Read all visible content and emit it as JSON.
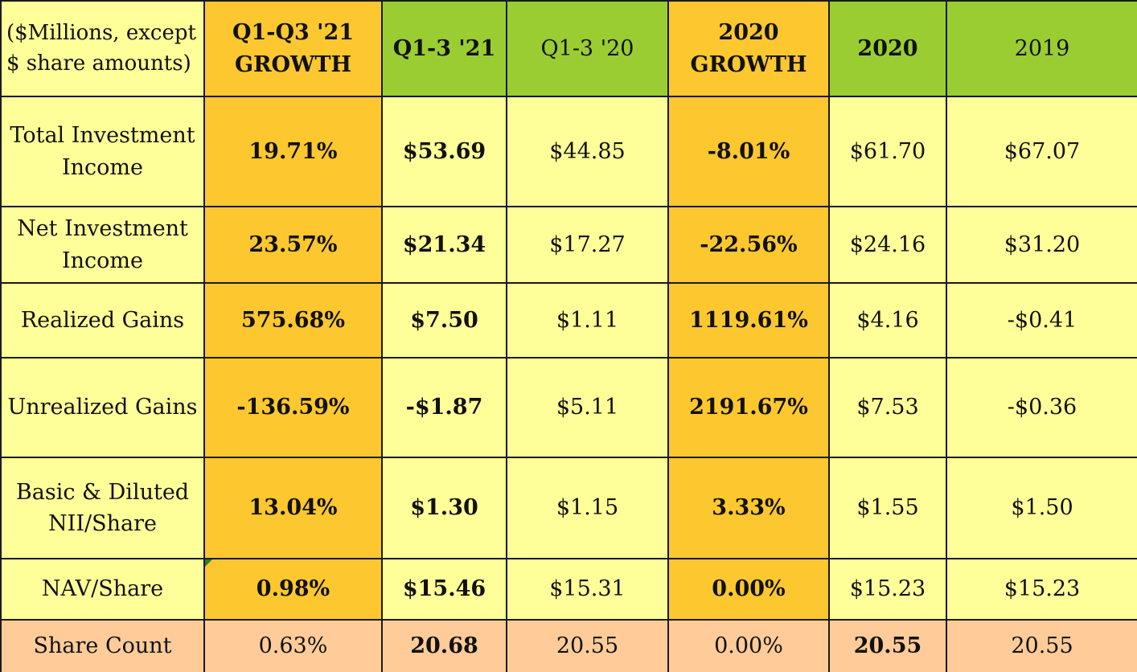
{
  "table": {
    "corner_label_line1": "($Millions, except",
    "corner_label_line2": "$ share amounts)",
    "headers": [
      {
        "line1": "Q1-Q3 '21",
        "line2": "GROWTH"
      },
      {
        "line1": "Q1-3 '21",
        "line2": ""
      },
      {
        "line1": "Q1-3 '20",
        "line2": ""
      },
      {
        "line1": "2020",
        "line2": "GROWTH"
      },
      {
        "line1": "2020",
        "line2": ""
      },
      {
        "line1": "2019",
        "line2": ""
      }
    ],
    "rows": [
      {
        "label_line1": "Total Investment",
        "label_line2": "Income",
        "values": [
          "19.71%",
          "$53.69",
          "$44.85",
          "-8.01%",
          "$61.70",
          "$67.07"
        ]
      },
      {
        "label_line1": "Net Investment",
        "label_line2": "Income",
        "values": [
          "23.57%",
          "$21.34",
          "$17.27",
          "-22.56%",
          "$24.16",
          "$31.20"
        ]
      },
      {
        "label_line1": "Realized Gains",
        "label_line2": "",
        "values": [
          "575.68%",
          "$7.50",
          "$1.11",
          "1119.61%",
          "$4.16",
          "-$0.41"
        ]
      },
      {
        "label_line1": "Unrealized Gains",
        "label_line2": "",
        "values": [
          "-136.59%",
          "-$1.87",
          "$5.11",
          "2191.67%",
          "$7.53",
          "-$0.36"
        ]
      },
      {
        "label_line1": "Basic & Diluted",
        "label_line2": "NII/Share",
        "values": [
          "13.04%",
          "$1.30",
          "$1.15",
          "3.33%",
          "$1.55",
          "$1.50"
        ]
      },
      {
        "label_line1": "NAV/Share",
        "label_line2": "",
        "values": [
          "0.98%",
          "$15.46",
          "$15.31",
          "0.00%",
          "$15.23",
          "$15.23"
        ]
      },
      {
        "label_line1": "Share Count",
        "label_line2": "",
        "values": [
          "0.63%",
          "20.68",
          "20.55",
          "0.00%",
          "20.55",
          "20.55"
        ]
      }
    ]
  },
  "colors": {
    "header_green": "#9acd32",
    "growth_gold": "#fdc72f",
    "body_yellow": "#ffff99",
    "share_count_peach": "#ffcc99",
    "grid_border": "#1a1a1a"
  }
}
